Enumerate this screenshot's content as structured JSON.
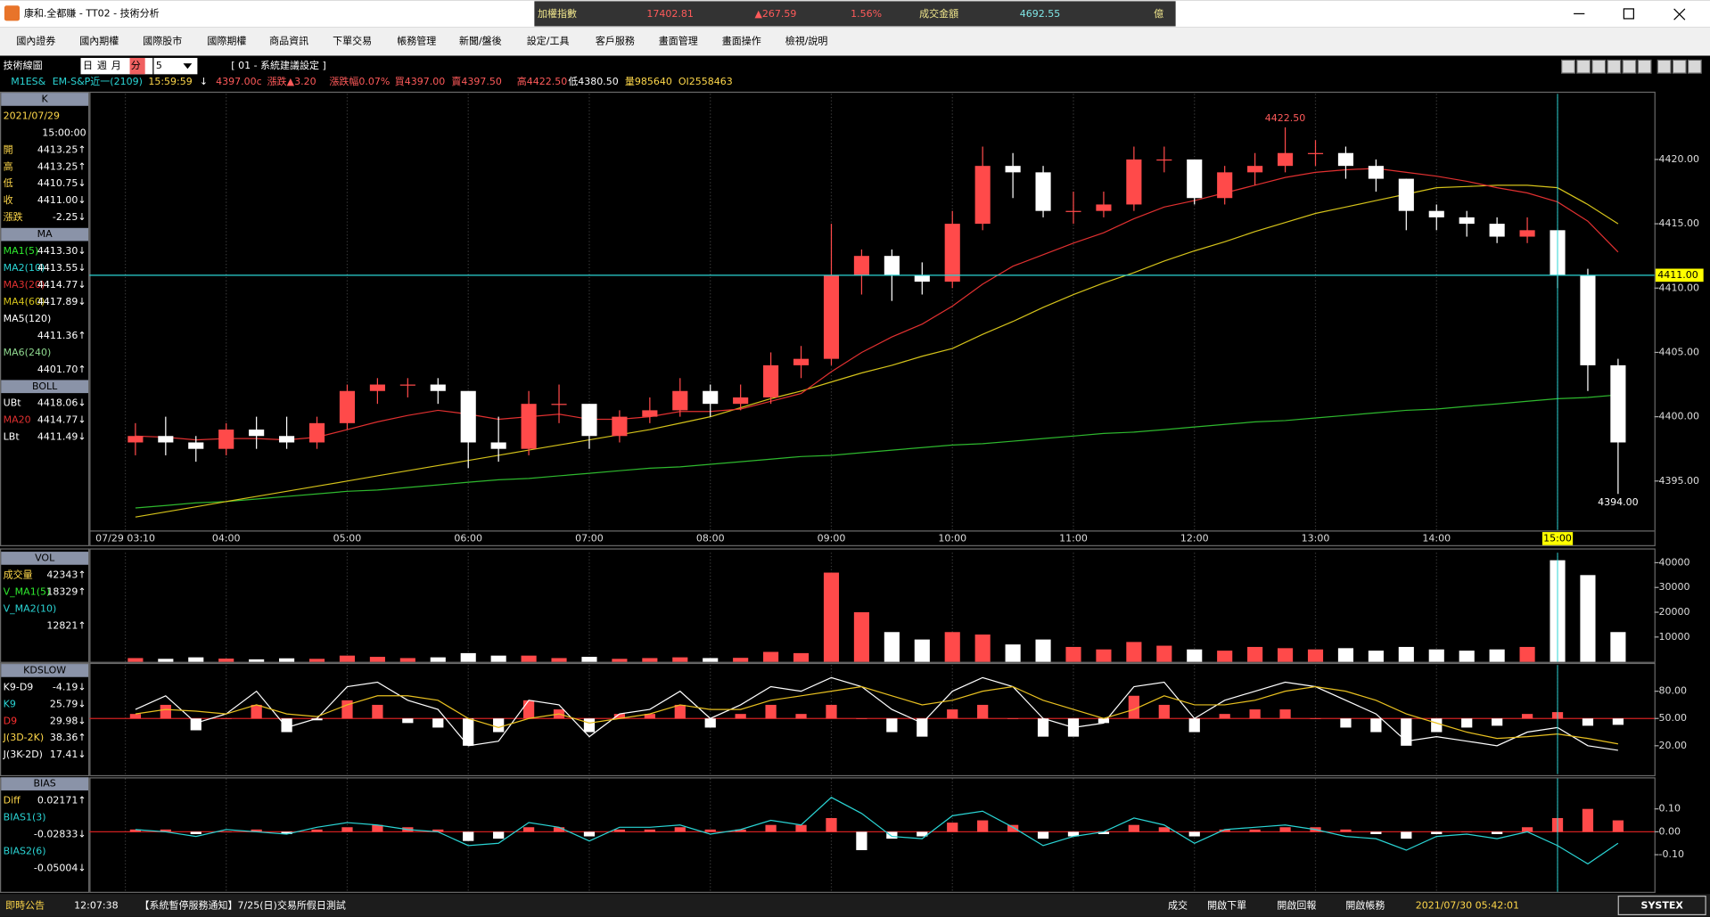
{
  "window": {
    "title": "康和.全都賺 - TT02 - 技術分析"
  },
  "ticker": {
    "name": "加權指數",
    "index": "17402.81",
    "change": "▲267.59",
    "percent": "1.56%",
    "turnover_label": "成交金額",
    "turnover": "4692.55",
    "unit": "億"
  },
  "menu": [
    "國內證券",
    "國內期權",
    "國際股市",
    "國際期權",
    "商品資訊",
    "下單交易",
    "帳務管理",
    "新聞/盤後",
    "設定/工具",
    "客戶服務",
    "畫面管理",
    "畫面操作",
    "檢視/說明"
  ],
  "toolbar": {
    "title": "技術線圖",
    "periods": [
      "日",
      "週",
      "月",
      "分"
    ],
    "interval": "5",
    "setting": "[ 01 - 系統建議設定 ]"
  },
  "quote": [
    "M1ES&",
    "EM-S&P近一(2109)",
    "15:59:59",
    "↓",
    "4397.00c",
    "漲跌▲3.20",
    "漲跌幅0.07%",
    "買4397.00",
    "賣4397.50",
    "高4422.50",
    "低4380.50",
    "量985640",
    "OI2558463"
  ],
  "status": {
    "label": "即時公告",
    "time": "12:07:38",
    "notice": "【系統暫停服務通知】7/25(日)交易所假日測試",
    "buttons": [
      "成交",
      "開啟下單",
      "開啟回報",
      "開啟帳務"
    ],
    "datetime": "2021/07/30 05:42:01",
    "brand": "SYSTEX"
  },
  "chart_data": [
    {
      "type": "candlestick",
      "x": [
        3.25,
        3.5,
        3.75,
        4,
        4.25,
        4.5,
        4.75,
        5,
        5.25,
        5.5,
        5.75,
        6,
        6.25,
        6.5,
        6.75,
        7,
        7.25,
        7.5,
        7.75,
        8,
        8.25,
        8.5,
        8.75,
        9,
        9.25,
        9.5,
        9.75,
        10,
        10.25,
        10.5,
        10.75,
        11,
        11.25,
        11.5,
        11.75,
        12,
        12.25,
        12.5,
        12.75,
        13,
        13.25,
        13.5,
        13.75,
        14,
        14.25,
        14.5,
        14.75,
        15,
        15.25,
        15.5
      ],
      "xlim": [
        2.87,
        15.8
      ],
      "xticks": [
        {
          "value": 3.1667,
          "label": "07/29 03:10"
        },
        {
          "value": 4,
          "label": "04:00"
        },
        {
          "value": 5,
          "label": "05:00"
        },
        {
          "value": 6,
          "label": "06:00"
        },
        {
          "value": 7,
          "label": "07:00"
        },
        {
          "value": 8,
          "label": "08:00"
        },
        {
          "value": 9,
          "label": "09:00"
        },
        {
          "value": 10,
          "label": "10:00"
        },
        {
          "value": 11,
          "label": "11:00"
        },
        {
          "value": 12,
          "label": "12:00"
        },
        {
          "value": 13,
          "label": "13:00"
        },
        {
          "value": 14,
          "label": "14:00"
        },
        {
          "value": 15,
          "label": "15:00"
        }
      ],
      "open": [
        4398,
        4398.5,
        4398,
        4397.5,
        4399,
        4398.5,
        4398,
        4399.5,
        4402,
        4402.5,
        4402.5,
        4402,
        4398,
        4397.5,
        4401,
        4401,
        4398.5,
        4400,
        4400.5,
        4402,
        4401,
        4401.5,
        4404,
        4404.5,
        4411,
        4412.5,
        4411,
        4410.5,
        4415,
        4419.5,
        4419,
        4416,
        4416,
        4416.5,
        4420,
        4420,
        4417,
        4419,
        4419.5,
        4420.5,
        4420.5,
        4419.5,
        4418.5,
        4416,
        4415.5,
        4415,
        4414,
        4414.5,
        4411,
        4404
      ],
      "high": [
        4399.5,
        4400,
        4398.5,
        4399.5,
        4400,
        4400,
        4400,
        4402.5,
        4403,
        4403,
        4403,
        4402,
        4400,
        4402,
        4402.5,
        4401,
        4400.5,
        4401.5,
        4403,
        4402.5,
        4402.5,
        4405,
        4405.5,
        4415,
        4413,
        4413,
        4412,
        4416,
        4421,
        4420.5,
        4419.5,
        4417.5,
        4417.5,
        4421,
        4421,
        4420,
        4419.5,
        4420.5,
        4422.5,
        4421.5,
        4421,
        4420,
        4418.5,
        4416.5,
        4416,
        4415.5,
        4415.5,
        4414.5,
        4411.5,
        4404.5
      ],
      "low": [
        4397,
        4397,
        4396.5,
        4397,
        4397.5,
        4397.5,
        4397.5,
        4399,
        4401,
        4401.5,
        4401,
        4396,
        4396.5,
        4397,
        4399.5,
        4397.5,
        4398,
        4399.5,
        4400,
        4400,
        4400.5,
        4401,
        4403,
        4404,
        4409.5,
        4409,
        4409.5,
        4410,
        4414.5,
        4417,
        4415.5,
        4415,
        4415.5,
        4416,
        4419,
        4416.5,
        4416.5,
        4418,
        4419,
        4419.5,
        4418.5,
        4417.5,
        4414.5,
        4414.5,
        4414,
        4413.5,
        4413.5,
        4410,
        4402,
        4394
      ],
      "close": [
        4398.5,
        4398,
        4397.5,
        4399,
        4398.5,
        4398,
        4399.5,
        4402,
        4402.5,
        4402.5,
        4402,
        4398,
        4397.5,
        4401,
        4401,
        4398.5,
        4400,
        4400.5,
        4402,
        4401,
        4401.5,
        4404,
        4404.5,
        4411,
        4412.5,
        4411,
        4410.5,
        4415,
        4419.5,
        4419,
        4416,
        4416,
        4416.5,
        4420,
        4420,
        4417,
        4419,
        4419.5,
        4420.5,
        4420.5,
        4419.5,
        4418.5,
        4416,
        4415.5,
        4415,
        4414,
        4414.5,
        4411,
        4404,
        4398
      ],
      "up_color": "#ff4a4a",
      "down_color": "#ffffff",
      "series": [
        {
          "color": "#2eb82e",
          "values": [
            4392.9,
            4393.1,
            4393.3,
            4393.4,
            4393.6,
            4393.8,
            4394.0,
            4394.2,
            4394.3,
            4394.5,
            4394.7,
            4394.9,
            4395.1,
            4395.2,
            4395.4,
            4395.6,
            4395.8,
            4396.0,
            4396.1,
            4396.3,
            4396.5,
            4396.7,
            4396.9,
            4397.0,
            4397.2,
            4397.4,
            4397.6,
            4397.8,
            4397.9,
            4398.1,
            4398.3,
            4398.5,
            4398.7,
            4398.8,
            4399.0,
            4399.2,
            4399.4,
            4399.6,
            4399.7,
            4399.9,
            4400.1,
            4400.3,
            4400.5,
            4400.6,
            4400.8,
            4401.0,
            4401.2,
            4401.4,
            4401.5,
            4401.7
          ]
        },
        {
          "color": "#d4c21a",
          "values": [
            4392.2,
            4392.6,
            4393.0,
            4393.4,
            4393.8,
            4394.2,
            4394.6,
            4395.0,
            4395.4,
            4395.8,
            4396.2,
            4396.6,
            4397.0,
            4397.4,
            4397.8,
            4398.2,
            4398.6,
            4399.0,
            4399.5,
            4400.0,
            4400.7,
            4401.4,
            4402.0,
            4402.7,
            4403.4,
            4404.0,
            4404.7,
            4405.3,
            4406.4,
            4407.4,
            4408.5,
            4409.5,
            4410.4,
            4411.2,
            4412.1,
            4412.9,
            4413.6,
            4414.4,
            4415.1,
            4415.8,
            4416.3,
            4416.8,
            4417.3,
            4417.8,
            4417.9,
            4418.0,
            4418.0,
            4417.8,
            4416.5,
            4415.0
          ]
        },
        {
          "color": "#e03030",
          "values": [
            4398.5,
            4398.4,
            4398.2,
            4398.3,
            4398.3,
            4398.2,
            4398.4,
            4399,
            4399.6,
            4400.1,
            4400.5,
            4400.2,
            4399.8,
            4400,
            4400.2,
            4399.8,
            4399.8,
            4400,
            4400.4,
            4400.4,
            4400.6,
            4401.2,
            4401.8,
            4403.5,
            4405,
            4406.2,
            4407.2,
            4408.6,
            4410.3,
            4411.7,
            4412.6,
            4413.5,
            4414.3,
            4415.4,
            4416.3,
            4416.8,
            4417.4,
            4418,
            4418.6,
            4419,
            4419.2,
            4419.3,
            4419,
            4418.7,
            4418.3,
            4417.8,
            4417.4,
            4416.7,
            4415.2,
            4412.8
          ]
        }
      ],
      "ylim": [
        4391.2,
        4425.1
      ],
      "yticks": [
        {
          "value": 4420,
          "label": "4420.00"
        },
        {
          "value": 4415,
          "label": "4415.00"
        },
        {
          "value": 4410,
          "label": "4410.00"
        },
        {
          "value": 4405,
          "label": "4405.00"
        },
        {
          "value": 4400,
          "label": "4400.00"
        },
        {
          "value": 4395,
          "label": "4395.00"
        }
      ],
      "annotations": [
        {
          "value": 4422.5,
          "label": "4422.50"
        },
        {
          "value": 4394,
          "label": "4394.00"
        }
      ],
      "last": {
        "value": 4411,
        "label": "4411.00"
      },
      "info": [
        {
          "title": "K"
        },
        {
          "label": "2021/07/29"
        },
        {
          "value": "15:00:00"
        },
        {
          "label": "開",
          "value": "4413.25↑"
        },
        {
          "label": "高",
          "value": "4413.25↑"
        },
        {
          "label": "低",
          "value": "4410.75↓"
        },
        {
          "label": "收",
          "value": "4411.00↓"
        },
        {
          "label": "漲跌",
          "value": "-2.25↓"
        },
        {
          "title": "MA"
        },
        {
          "label": "MA1(5)",
          "value": "4413.30↓",
          "color": "#2ee82e"
        },
        {
          "label": "MA2(10)",
          "value": "4413.55↓",
          "color": "#2ad4d4"
        },
        {
          "label": "MA3(20)",
          "value": "4414.77↓",
          "color": "#e03030"
        },
        {
          "label": "MA4(60)",
          "value": "4417.89↓",
          "color": "#d4c21a"
        },
        {
          "label": "MA5(120)",
          "color": "#ffffff"
        },
        {
          "value": "4411.36↑"
        },
        {
          "label": "MA6(240)",
          "color": "#8fd88f"
        },
        {
          "value": "4401.70↑"
        },
        {
          "title": "BOLL"
        },
        {
          "label": "UBt",
          "value": "4418.06↓",
          "color": "#ffffff"
        },
        {
          "label": "MA20",
          "value": "4414.77↓",
          "color": "#e03030"
        },
        {
          "label": "LBt",
          "value": "4411.49↓",
          "color": "#ffffff"
        }
      ]
    },
    {
      "type": "volume",
      "values": [
        1500,
        1200,
        1800,
        1300,
        1000,
        1400,
        1200,
        2500,
        2000,
        1500,
        1800,
        3500,
        2500,
        2500,
        1500,
        2000,
        1200,
        1500,
        1800,
        1500,
        1600,
        4000,
        3500,
        36000,
        20000,
        12000,
        9000,
        12000,
        11000,
        7000,
        9000,
        6000,
        5000,
        8000,
        6500,
        5000,
        4500,
        6000,
        5500,
        5000,
        5500,
        4500,
        6000,
        5000,
        4500,
        5000,
        6000,
        41000,
        35000,
        12000
      ],
      "ylim": [
        0,
        44000
      ],
      "yticks": [
        40000,
        30000,
        20000,
        10000
      ],
      "info": [
        {
          "title": "VOL"
        },
        {
          "label": "成交量",
          "value": "42343↑",
          "color": "#ffd84a"
        },
        {
          "label": "V_MA1(5)",
          "value": "18329↑",
          "color": "#2ee82e"
        },
        {
          "label": "V_MA2(10)",
          "color": "#2ad4d4"
        },
        {
          "value": "12821↑"
        }
      ]
    },
    {
      "type": "indicator",
      "bars": [
        5,
        15,
        -13,
        0,
        15,
        -15,
        -2,
        20,
        15,
        -5,
        -10,
        -30,
        -15,
        20,
        10,
        -15,
        5,
        5,
        15,
        -10,
        5,
        15,
        5,
        15,
        0,
        -15,
        -20,
        10,
        15,
        0,
        -20,
        -20,
        -5,
        25,
        15,
        -15,
        5,
        10,
        10,
        0,
        -10,
        -15,
        -30,
        -15,
        -10,
        -8,
        5,
        7,
        -8,
        -7
      ],
      "series": [
        {
          "color": "#ffffff",
          "values": [
            60,
            75,
            45,
            55,
            80,
            40,
            50,
            85,
            90,
            70,
            60,
            20,
            25,
            70,
            65,
            30,
            55,
            60,
            80,
            50,
            65,
            85,
            80,
            95,
            85,
            60,
            45,
            80,
            95,
            85,
            50,
            40,
            45,
            85,
            90,
            50,
            70,
            80,
            90,
            85,
            70,
            55,
            25,
            30,
            25,
            20,
            35,
            40,
            20,
            15
          ]
        },
        {
          "color": "#e8c020",
          "values": [
            55,
            60,
            58,
            55,
            65,
            55,
            52,
            65,
            75,
            75,
            70,
            50,
            40,
            50,
            55,
            45,
            50,
            55,
            65,
            60,
            60,
            70,
            75,
            80,
            85,
            75,
            65,
            70,
            80,
            85,
            70,
            60,
            50,
            60,
            75,
            65,
            65,
            70,
            80,
            85,
            80,
            70,
            55,
            45,
            35,
            28,
            30,
            33,
            28,
            22
          ]
        }
      ],
      "ylim": [
        -11.2,
        108.8
      ],
      "yticks": [
        {
          "value": 80,
          "label": "80.00"
        },
        {
          "value": 50,
          "label": "50.00"
        },
        {
          "value": 20,
          "label": "20.00"
        }
      ],
      "info": [
        {
          "title": "KDSLOW"
        },
        {
          "label": "K9-D9",
          "value": "-4.19↓",
          "color": "#ffffff"
        },
        {
          "label": "K9",
          "value": "25.79↓",
          "color": "#2ad4d4"
        },
        {
          "label": "D9",
          "value": "29.98↓",
          "color": "#ff3030"
        },
        {
          "label": "J(3D-2K)",
          "value": "38.36↑",
          "color": "#ffd84a"
        },
        {
          "label": "J(3K-2D)",
          "value": "17.41↓",
          "color": "#ffffff"
        }
      ]
    },
    {
      "type": "indicator",
      "bars": [
        0.01,
        0.01,
        -0.01,
        0,
        0.01,
        -0.01,
        0.01,
        0.02,
        0.03,
        0.02,
        0.01,
        -0.04,
        -0.03,
        0.02,
        0.02,
        -0.02,
        0.01,
        0.01,
        0.02,
        0.01,
        0.01,
        0.03,
        0.03,
        0.06,
        -0.08,
        -0.03,
        -0.02,
        0.04,
        0.05,
        0.03,
        -0.03,
        -0.02,
        -0.01,
        0.03,
        0.02,
        -0.02,
        0.01,
        0.01,
        0.02,
        0.02,
        0.01,
        -0.01,
        -0.03,
        -0.01,
        0,
        -0.01,
        0.02,
        0.06,
        0.1,
        0.05
      ],
      "series": [
        {
          "color": "#2ad4d4",
          "values": [
            0.01,
            0,
            -0.02,
            0.01,
            0,
            -0.01,
            0.02,
            0.04,
            0.03,
            0.01,
            0,
            -0.06,
            -0.05,
            0.04,
            0.02,
            -0.04,
            0.02,
            0.02,
            0.03,
            -0.01,
            0.01,
            0.05,
            0.03,
            0.15,
            0.08,
            -0.02,
            -0.03,
            0.07,
            0.09,
            0.02,
            -0.06,
            -0.02,
            0,
            0.06,
            0.03,
            -0.05,
            0.01,
            0.02,
            0.03,
            0.01,
            -0.02,
            -0.03,
            -0.08,
            -0.02,
            -0.01,
            -0.03,
            0,
            -0.06,
            -0.14,
            -0.05
          ]
        }
      ],
      "ylim": [
        -0.262,
        0.233
      ],
      "yticks": [
        {
          "value": 0.1,
          "label": "0.10"
        },
        {
          "value": 0,
          "label": "0.00"
        },
        {
          "value": -0.1,
          "label": "-0.10"
        }
      ],
      "info": [
        {
          "title": "BIAS"
        },
        {
          "label": "Diff",
          "value": "0.02171↑",
          "color": "#ffd84a"
        },
        {
          "label": "BIAS1(3)",
          "color": "#2ad4d4"
        },
        {
          "value": "-0.02833↓"
        },
        {
          "label": "BIAS2(6)",
          "color": "#2ad4d4"
        },
        {
          "value": "-0.05004↓"
        }
      ]
    }
  ]
}
